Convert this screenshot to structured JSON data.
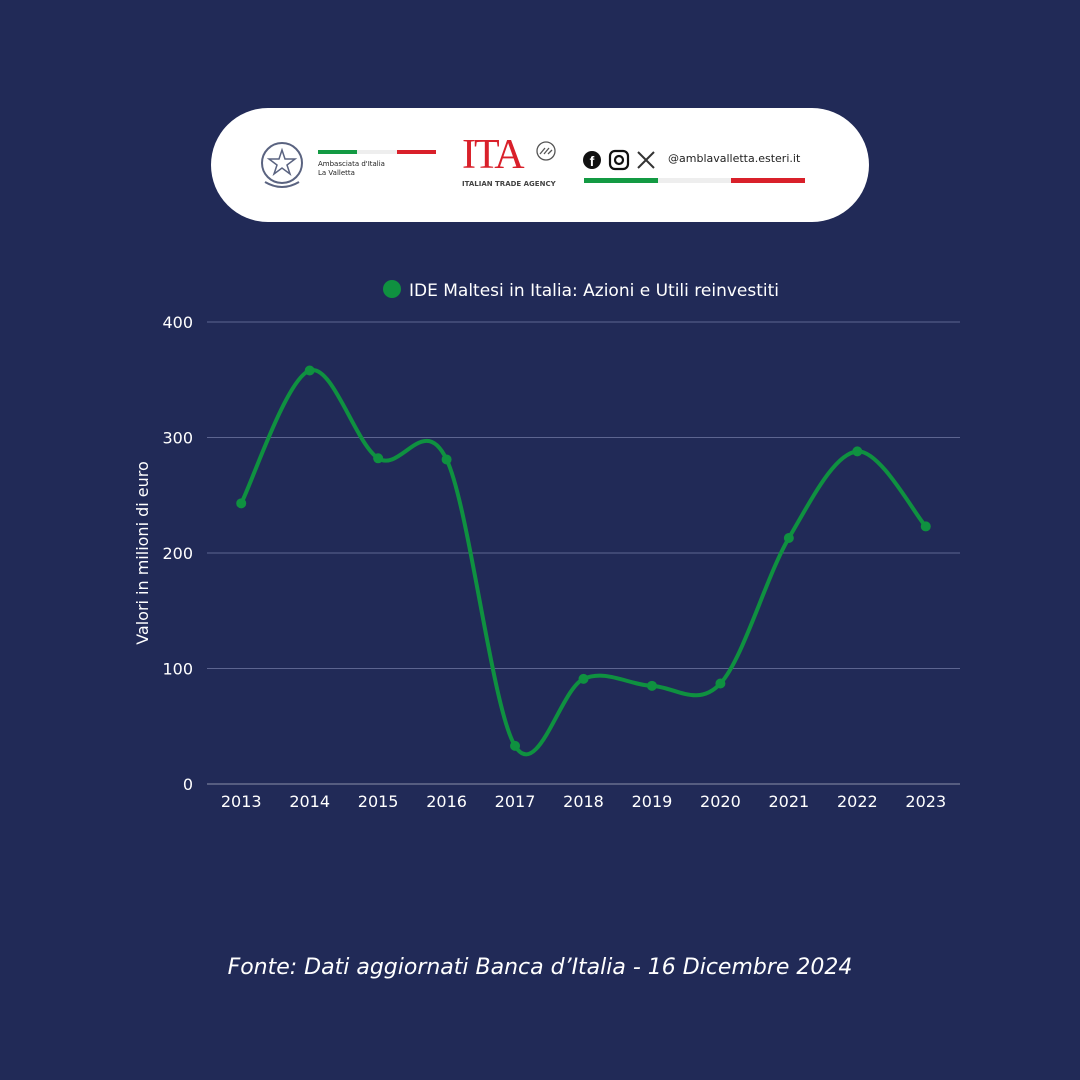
{
  "banner": {
    "embassy_line1": "Ambasciata d'Italia",
    "embassy_line2": "La Valletta",
    "ita_logo": "ITA",
    "ita_subtitle": "ITALIAN TRADE AGENCY",
    "social_icons": [
      "facebook-icon",
      "instagram-icon",
      "x-icon"
    ],
    "handle": "@amblavalletta.esteri.it",
    "flag_colors": [
      "#139a43",
      "#f1f1f1",
      "#d9202a"
    ]
  },
  "chart_data": {
    "type": "line",
    "categories": [
      "2013",
      "2014",
      "2015",
      "2016",
      "2017",
      "2018",
      "2019",
      "2020",
      "2021",
      "2022",
      "2023"
    ],
    "series": [
      {
        "name": "IDE Maltesi in Italia: Azioni e Utili reinvestiti",
        "values": [
          243,
          358,
          282,
          281,
          33,
          91,
          85,
          87,
          213,
          288,
          223
        ],
        "color": "#0f9140"
      }
    ],
    "ylabel": "Valori in milioni di euro",
    "xlabel": "",
    "ylim": [
      0,
      400
    ],
    "yticks": [
      0,
      100,
      200,
      300,
      400
    ],
    "grid": true,
    "legend": "top-center",
    "smooth": true
  },
  "footer": "Fonte: Dati aggiornati Banca d’Italia - 16 Dicembre 2024"
}
